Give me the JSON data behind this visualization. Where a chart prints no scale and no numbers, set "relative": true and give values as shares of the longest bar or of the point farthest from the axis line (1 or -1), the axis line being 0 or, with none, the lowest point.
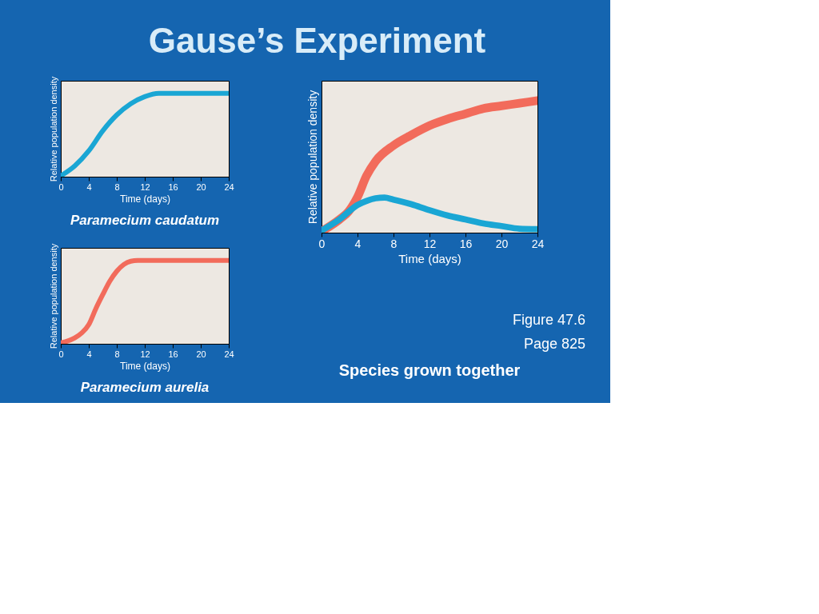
{
  "chart_data": [
    {
      "type": "line",
      "title": "Paramecium caudatum",
      "xlabel": "Time (days)",
      "ylabel": "Relative population density",
      "relative": true,
      "grid": false,
      "marker": "none",
      "line_style": "solid",
      "annotations": [
        "Gause’s Experiment"
      ],
      "xlim": [
        0,
        24
      ],
      "xticks": [
        0,
        4,
        8,
        12,
        16,
        20,
        24
      ],
      "series": [
        {
          "color": "#1aa6d4",
          "x": [
            0,
            2,
            4,
            6,
            8,
            10,
            12,
            14,
            16,
            20,
            24
          ],
          "values": [
            0.01,
            0.13,
            0.31,
            0.55,
            0.74,
            0.875,
            0.96,
            1,
            1,
            1,
            1
          ]
        }
      ]
    },
    {
      "type": "line",
      "title": "Paramecium aurelia",
      "xlabel": "Time (days)",
      "ylabel": "Relative population density",
      "relative": true,
      "grid": false,
      "marker": "none",
      "line_style": "solid",
      "xlim": [
        0,
        24
      ],
      "xticks": [
        0,
        4,
        8,
        12,
        16,
        20,
        24
      ],
      "series": [
        {
          "color": "#f26b5b",
          "x": [
            0,
            2,
            3,
            4,
            5,
            6,
            7,
            8,
            9,
            10,
            11,
            12,
            16,
            20,
            24
          ],
          "values": [
            0.01,
            0.07,
            0.13,
            0.23,
            0.42,
            0.59,
            0.75,
            0.87,
            0.95,
            0.99,
            1,
            1,
            1,
            1,
            1
          ]
        }
      ]
    },
    {
      "type": "line",
      "title": "Species grown together",
      "xlabel": "Time (days)",
      "ylabel": "Relative population density",
      "relative": true,
      "grid": false,
      "marker": "none",
      "line_style": "solid",
      "annotations": [
        "Figure 47.6",
        "Page 825"
      ],
      "xlim": [
        0,
        24
      ],
      "xticks": [
        0,
        4,
        8,
        12,
        16,
        20,
        24
      ],
      "series": [
        {
          "color": "#f26b5b",
          "x": [
            0,
            2,
            3,
            4,
            5,
            6,
            8,
            10,
            12,
            14,
            16,
            18,
            20,
            22,
            24
          ],
          "values": [
            0.01,
            0.1,
            0.16,
            0.27,
            0.43,
            0.54,
            0.66,
            0.74,
            0.81,
            0.86,
            0.9,
            0.94,
            0.96,
            0.98,
            1
          ]
        },
        {
          "color": "#1aa6d4",
          "x": [
            0,
            2,
            4,
            5,
            6,
            7,
            8,
            10,
            12,
            14,
            16,
            18,
            20,
            22,
            24
          ],
          "values": [
            0.015,
            0.1,
            0.21,
            0.24,
            0.26,
            0.265,
            0.25,
            0.215,
            0.17,
            0.13,
            0.1,
            0.07,
            0.05,
            0.03,
            0.027
          ]
        }
      ]
    }
  ]
}
